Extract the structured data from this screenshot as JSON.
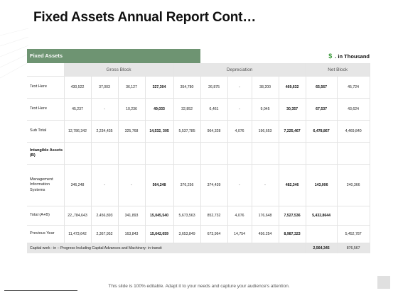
{
  "title": "Fixed Assets Annual Report Cont…",
  "table_label": "Fixed Assets",
  "units": {
    "symbol": "$",
    "text": ". in Thousand"
  },
  "groups": [
    "Gross Block",
    "Depreciation",
    "Net Block"
  ],
  "rows": [
    {
      "label": "Text Here",
      "cells": [
        "430,522",
        "37,003",
        "36,127",
        "327,304",
        "354,780",
        "26,875",
        "-",
        "38,200",
        "469,632",
        "65,567",
        "45,724"
      ]
    },
    {
      "label": "Text Here",
      "cells": [
        "45,237",
        "-",
        "10,236",
        "49,033",
        "32,852",
        "6,461",
        "-",
        "9,045",
        "30,357",
        "67,537",
        "43,624"
      ]
    },
    {
      "label": "Sub Total",
      "cells": [
        "12,786,342",
        "2,234,435",
        "325,768",
        "14,532, 305",
        "5,537,785",
        "964,328",
        "4,076",
        "196,653",
        "7,225,467",
        "6,478,867",
        "4,469,840"
      ]
    },
    {
      "label": "Intangible Assets (B)",
      "cells": [
        "",
        "",
        "",
        "",
        "",
        "",
        "",
        "",
        "",
        "",
        ""
      ]
    },
    {
      "label": "Management Information Systems",
      "cells": [
        "346,248",
        "-",
        "-",
        "564,248",
        "376,256",
        "374,439",
        "-",
        "-",
        "482,346",
        "143,006",
        "240,366"
      ]
    },
    {
      "label": "Total (A+B)",
      "cells": [
        "22,,784,643",
        "2,456,893",
        "341,893",
        "15,045,540",
        "5,673,563",
        "852,732",
        "4,076",
        "176,648",
        "7,527,536",
        "5,432,8644",
        ""
      ]
    },
    {
      "label": "Previous Year",
      "cells": [
        "11,473,642",
        "2,367,952",
        "163,843",
        "15,642,659",
        "3,653,849",
        "673,964",
        "14,754",
        "456.254",
        "8,987,323",
        "",
        "5,452,787"
      ]
    }
  ],
  "capital_work": {
    "label": "Capital work - in – Progress Including Capital Advances and Machinery- in transit",
    "net1": "2,564,345",
    "net2": "876,567"
  },
  "footer": "This slide is 100% editable. Adapt it to your needs and capture your audience's attention."
}
